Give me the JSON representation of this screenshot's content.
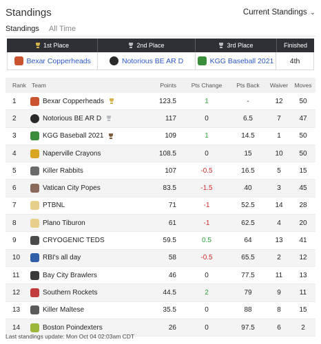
{
  "header": {
    "title": "Standings",
    "dropdown_label": "Current Standings",
    "chevron_icon": "chevron-down-icon"
  },
  "subtabs": [
    {
      "label": "Standings",
      "active": true
    },
    {
      "label": "All Time",
      "active": false
    }
  ],
  "podium": {
    "headers": {
      "first": "1st Place",
      "second": "2nd Place",
      "third": "3rd Place",
      "finished": "Finished"
    },
    "first": {
      "team": "Bexar Copperheads"
    },
    "second": {
      "team": "Notorious BE AR D"
    },
    "third": {
      "team": "KGG Baseball 2021"
    },
    "finished": "4th"
  },
  "columns": {
    "rank": "Rank",
    "team": "Team",
    "points": "Points",
    "pts_change": "Pts Change",
    "pts_back": "Pts Back",
    "waiver": "Waiver",
    "moves": "Moves"
  },
  "rows": [
    {
      "rank": "1",
      "team": "Bexar Copperheads",
      "trophy": "gold",
      "points": "123.5",
      "change": "1",
      "dir": "pos",
      "back": "-",
      "waiver": "12",
      "moves": "50",
      "avatar": "#c9532f"
    },
    {
      "rank": "2",
      "team": "Notorious BE AR D",
      "trophy": "silver",
      "points": "117",
      "change": "0",
      "dir": "",
      "back": "6.5",
      "waiver": "7",
      "moves": "47",
      "avatar": "#2a2a2a"
    },
    {
      "rank": "3",
      "team": "KGG Baseball 2021",
      "trophy": "bronze",
      "points": "109",
      "change": "1",
      "dir": "pos",
      "back": "14.5",
      "waiver": "1",
      "moves": "50",
      "avatar": "#3a8d3a"
    },
    {
      "rank": "4",
      "team": "Naperville Crayons",
      "trophy": "",
      "points": "108.5",
      "change": "0",
      "dir": "",
      "back": "15",
      "waiver": "10",
      "moves": "50",
      "avatar": "#d9a521"
    },
    {
      "rank": "5",
      "team": "Killer Rabbits",
      "trophy": "",
      "points": "107",
      "change": "-0.5",
      "dir": "neg",
      "back": "16.5",
      "waiver": "5",
      "moves": "15",
      "avatar": "#6b6b6b"
    },
    {
      "rank": "6",
      "team": "Vatican City Popes",
      "trophy": "",
      "points": "83.5",
      "change": "-1.5",
      "dir": "neg",
      "back": "40",
      "waiver": "3",
      "moves": "45",
      "avatar": "#8a6a5a"
    },
    {
      "rank": "7",
      "team": "PTBNL",
      "trophy": "",
      "points": "71",
      "change": "-1",
      "dir": "neg",
      "back": "52.5",
      "waiver": "14",
      "moves": "28",
      "avatar": "#e8cf8a"
    },
    {
      "rank": "8",
      "team": "Plano Tiburon",
      "trophy": "",
      "points": "61",
      "change": "-1",
      "dir": "neg",
      "back": "62.5",
      "waiver": "4",
      "moves": "20",
      "avatar": "#e8cf8a"
    },
    {
      "rank": "9",
      "team": "CRYOGENIC TEDS",
      "trophy": "",
      "points": "59.5",
      "change": "0.5",
      "dir": "pos",
      "back": "64",
      "waiver": "13",
      "moves": "41",
      "avatar": "#4a4a4a"
    },
    {
      "rank": "10",
      "team": "RBI's all day",
      "trophy": "",
      "points": "58",
      "change": "-0.5",
      "dir": "neg",
      "back": "65.5",
      "waiver": "2",
      "moves": "12",
      "avatar": "#2f5fa8"
    },
    {
      "rank": "11",
      "team": "Bay City Brawlers",
      "trophy": "",
      "points": "46",
      "change": "0",
      "dir": "",
      "back": "77.5",
      "waiver": "11",
      "moves": "13",
      "avatar": "#3a3a3a"
    },
    {
      "rank": "12",
      "team": "Southern Rockets",
      "trophy": "",
      "points": "44.5",
      "change": "2",
      "dir": "pos",
      "back": "79",
      "waiver": "9",
      "moves": "11",
      "avatar": "#c23b3b"
    },
    {
      "rank": "13",
      "team": "Killer Maltese",
      "trophy": "",
      "points": "35.5",
      "change": "0",
      "dir": "",
      "back": "88",
      "waiver": "8",
      "moves": "15",
      "avatar": "#5a5a5a"
    },
    {
      "rank": "14",
      "team": "Boston Poindexters",
      "trophy": "",
      "points": "26",
      "change": "0",
      "dir": "",
      "back": "97.5",
      "waiver": "6",
      "moves": "2",
      "avatar": "#9bb83a"
    }
  ],
  "footer": "Last standings update: Mon Oct 04 02:03am CDT",
  "colors": {
    "positive": "#2aa33b",
    "negative": "#d02b2b",
    "link": "#2c57c7",
    "podium_header": "#2f3035"
  }
}
